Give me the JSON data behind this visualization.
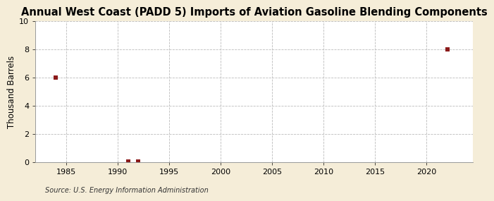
{
  "title": "Annual West Coast (PADD 5) Imports of Aviation Gasoline Blending Components",
  "ylabel": "Thousand Barrels",
  "source_text": "Source: U.S. Energy Information Administration",
  "background_color": "#F5EDD8",
  "plot_background_color": "#FFFFFF",
  "point_color": "#8B1A1A",
  "data_x": [
    1984,
    1991,
    1992,
    2022
  ],
  "data_y": [
    6.0,
    0.05,
    0.05,
    8.0
  ],
  "xlim": [
    1982.0,
    2024.5
  ],
  "ylim": [
    0,
    10
  ],
  "xticks": [
    1985,
    1990,
    1995,
    2000,
    2005,
    2010,
    2015,
    2020
  ],
  "yticks": [
    0,
    2,
    4,
    6,
    8,
    10
  ],
  "title_fontsize": 10.5,
  "label_fontsize": 8.5,
  "tick_fontsize": 8,
  "source_fontsize": 7,
  "marker_size": 4,
  "grid_color": "#BBBBBB",
  "grid_linestyle": "--",
  "grid_linewidth": 0.6
}
